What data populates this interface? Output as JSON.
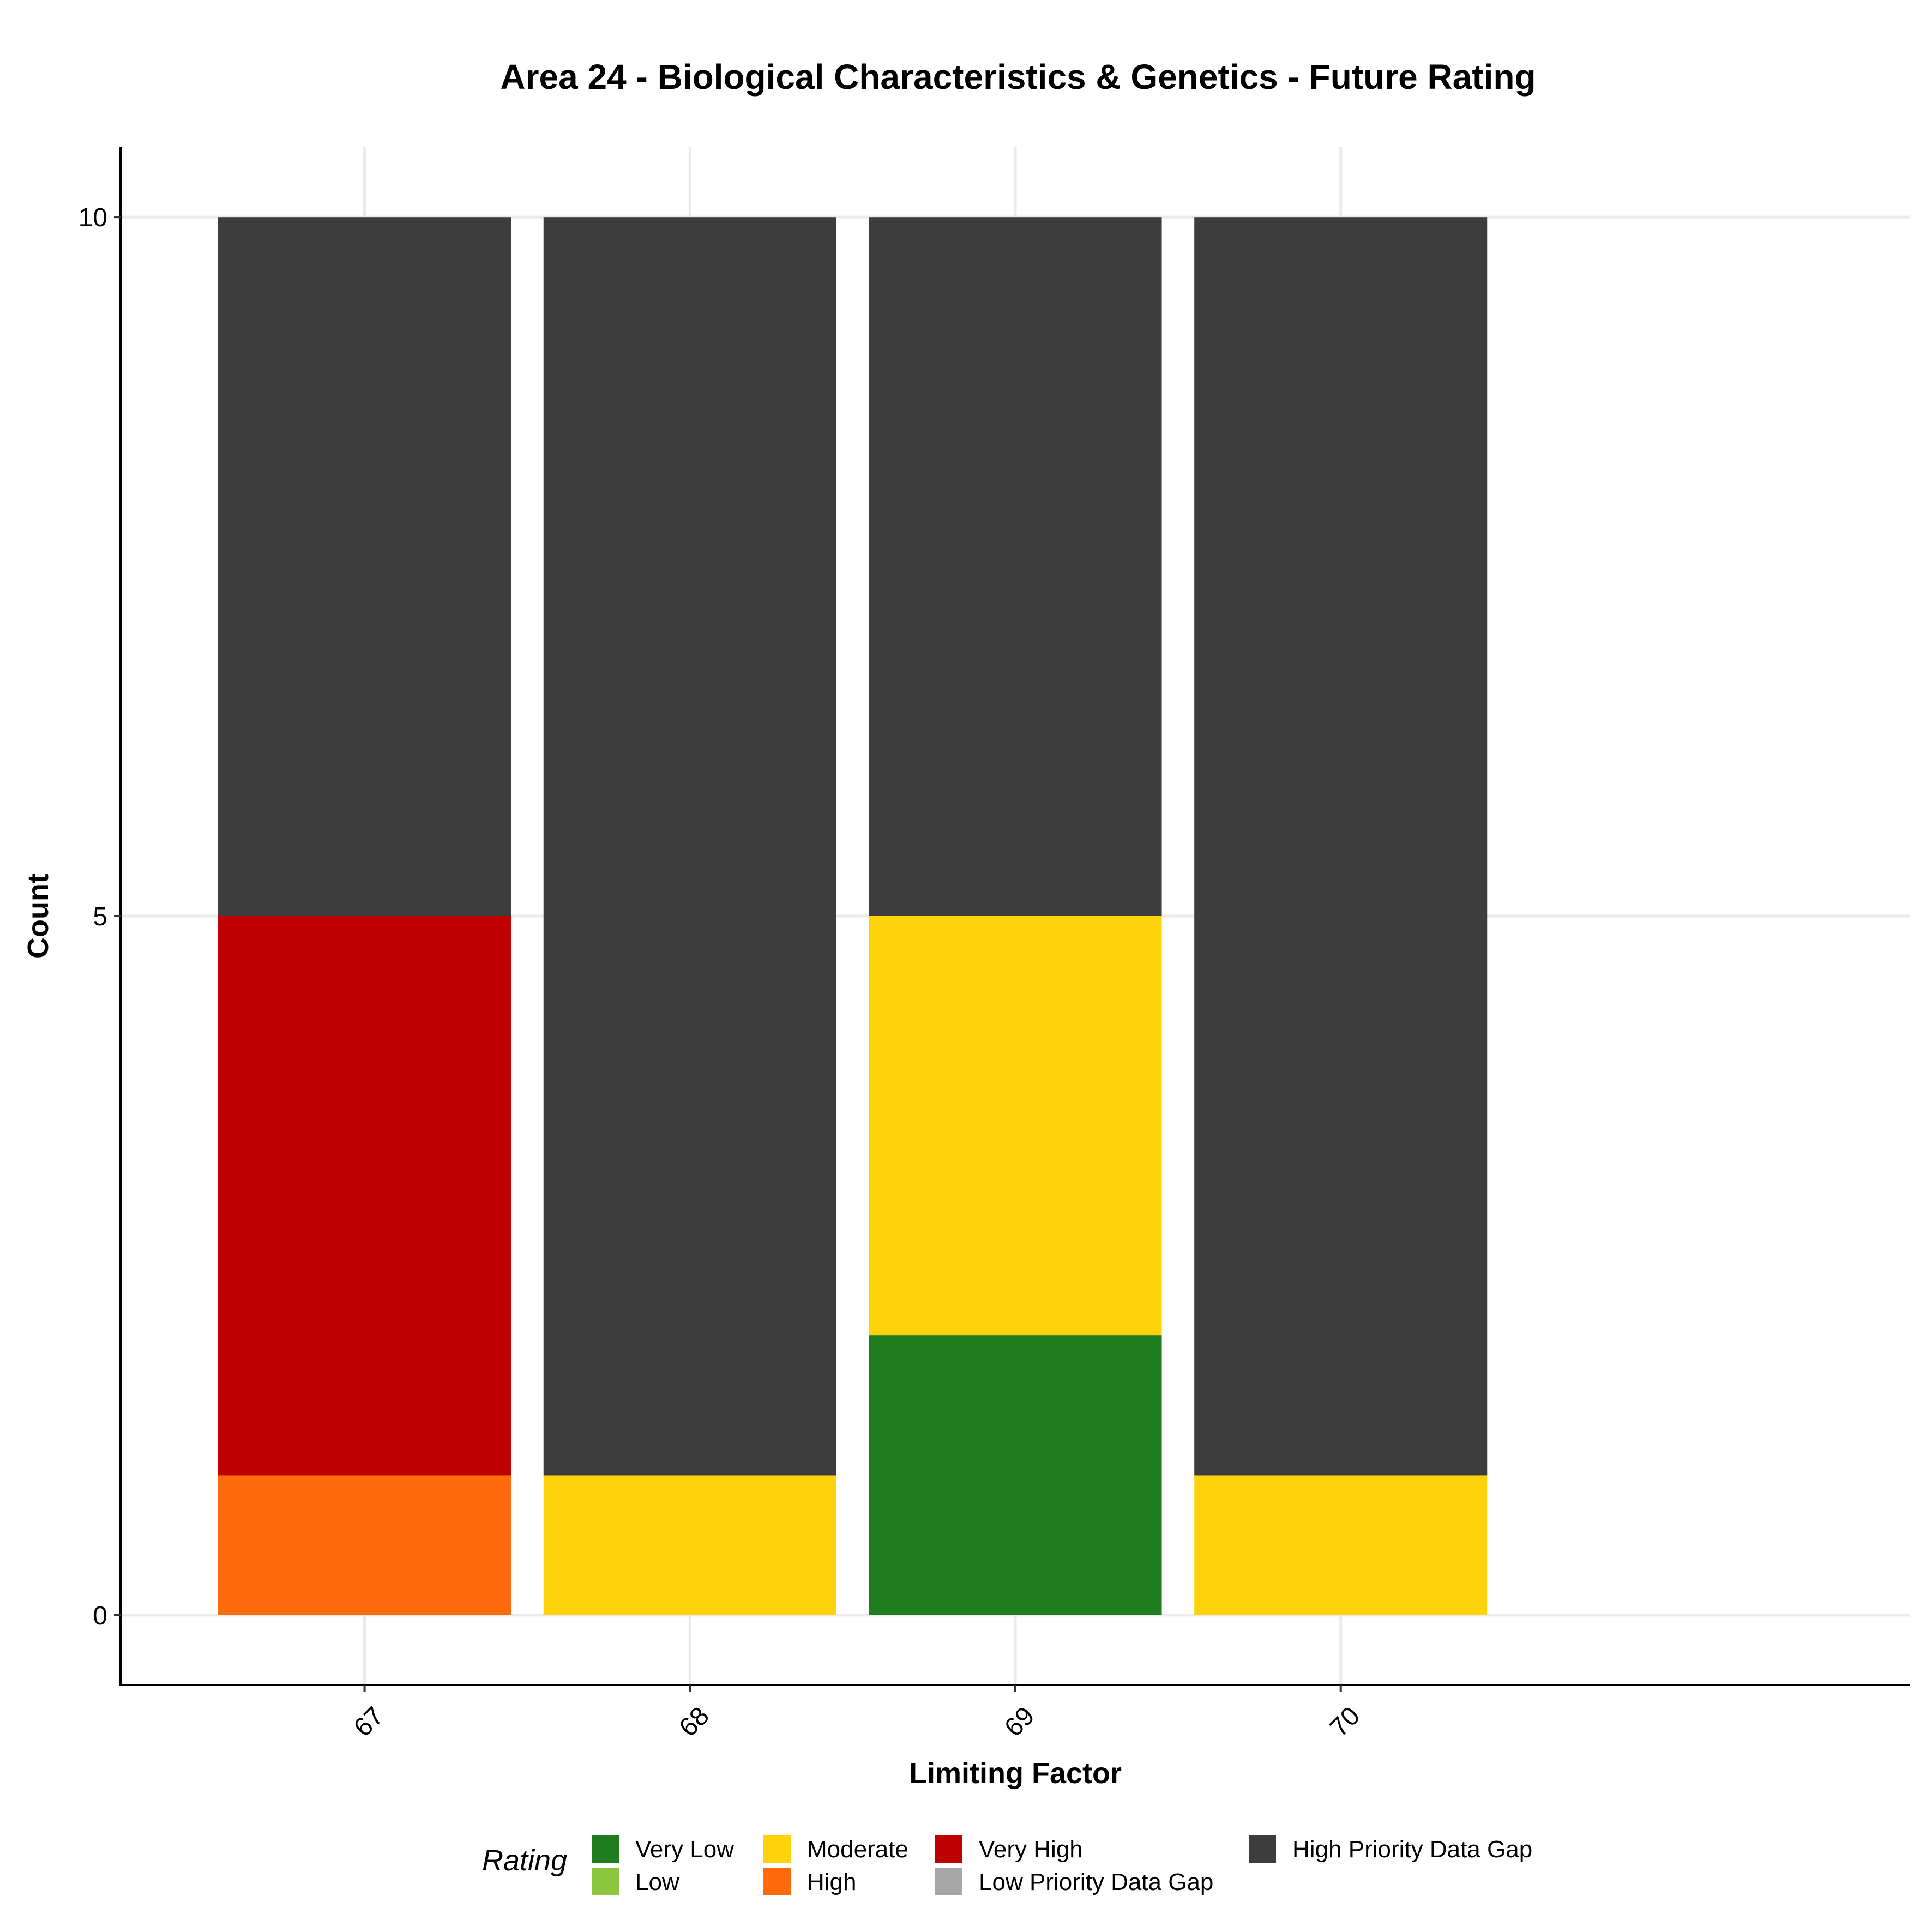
{
  "chart_data": {
    "type": "bar",
    "stacked": true,
    "title": "Area 24 - Biological Characteristics & Genetics - Future Rating",
    "xlabel": "Limiting Factor",
    "ylabel": "Count",
    "categories": [
      "67",
      "68",
      "69",
      "70"
    ],
    "ylim": [
      -0.5,
      10.5
    ],
    "yticks": [
      0,
      5,
      10
    ],
    "grid": true,
    "legend_placement": "bottom",
    "legend_title": "Rating",
    "series": [
      {
        "name": "Very Low",
        "color": "#1f7d1f",
        "values": [
          0,
          0,
          2,
          0
        ]
      },
      {
        "name": "Low",
        "color": "#8cc63f",
        "values": [
          0,
          0,
          0,
          0
        ]
      },
      {
        "name": "Moderate",
        "color": "#ffd20c",
        "values": [
          0,
          1,
          3,
          1
        ]
      },
      {
        "name": "High",
        "color": "#ff6a0c",
        "values": [
          1,
          0,
          0,
          0
        ]
      },
      {
        "name": "Very High",
        "color": "#be0005",
        "values": [
          4,
          0,
          0,
          0
        ]
      },
      {
        "name": "Low Priority Data Gap",
        "color": "#a6a6a6",
        "values": [
          0,
          0,
          0,
          0
        ]
      },
      {
        "name": "High Priority Data Gap",
        "color": "#3d3d3d",
        "values": [
          5,
          9,
          5,
          9
        ]
      }
    ]
  }
}
